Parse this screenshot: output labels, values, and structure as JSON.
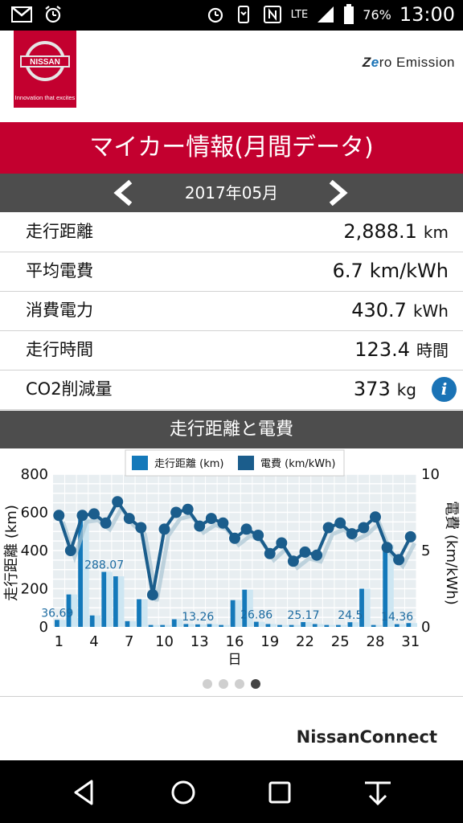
{
  "status_bar": {
    "time": "13:00",
    "battery_pct": "76%",
    "network": "LTE",
    "icons": [
      "gmail-icon",
      "alarm-icon",
      "alarm-clock-icon",
      "vibrate-icon",
      "nfc-icon",
      "signal-icon",
      "battery-icon"
    ]
  },
  "header": {
    "logo_brand": "NISSAN",
    "logo_tagline": "Innovation that excites",
    "ze_prefix": "Z",
    "ze_o": "e",
    "ze_rest": "ro Emission"
  },
  "title": "マイカー情報(月間データ)",
  "month_nav": {
    "label": "2017年05月"
  },
  "stats": [
    {
      "label": "走行距離",
      "value": "2,888.1",
      "unit": "km"
    },
    {
      "label": "平均電費",
      "value": "6.7",
      "unit": "km/kWh"
    },
    {
      "label": "消費電力",
      "value": "430.7",
      "unit": "kWh"
    },
    {
      "label": "走行時間",
      "value": "123.4",
      "unit": "時間"
    },
    {
      "label": "CO2削減量",
      "value": "373",
      "unit": "kg"
    }
  ],
  "info_icon_glyph": "i",
  "chart_title": "走行距離と電費",
  "chart_data": {
    "type": "bar+line",
    "legend": [
      "走行距離 (km)",
      "電費 (km/kWh)"
    ],
    "xlabel": "日",
    "ylabel_left": "走行距離 (km)",
    "ylabel_right": "電費 (km/kWh)",
    "ylim_left": [
      0,
      800
    ],
    "ylim_right": [
      0,
      10
    ],
    "yticks_left": [
      "0",
      "200",
      "400",
      "600",
      "800"
    ],
    "yticks_right": [
      "0",
      "5",
      "10"
    ],
    "xticks": [
      "1",
      "4",
      "7",
      "10",
      "13",
      "16",
      "19",
      "22",
      "25",
      "28",
      "31"
    ],
    "days": [
      1,
      2,
      3,
      4,
      5,
      6,
      7,
      8,
      9,
      10,
      11,
      12,
      13,
      14,
      15,
      16,
      17,
      18,
      19,
      20,
      21,
      22,
      23,
      24,
      25,
      26,
      27,
      28,
      29,
      30,
      31
    ],
    "distance_km": [
      36.69,
      170,
      570,
      60,
      288.07,
      265,
      30,
      145,
      10,
      10,
      40,
      15,
      13.26,
      15,
      10,
      140,
      195,
      26.86,
      15,
      10,
      10,
      25.17,
      15,
      10,
      10,
      24.5,
      200,
      10,
      430,
      14.36,
      20
    ],
    "efficiency_kmkwh": [
      7.3,
      5,
      7.3,
      7.4,
      6.8,
      8.2,
      7.1,
      6.5,
      2.1,
      6.4,
      7.5,
      7.7,
      6.6,
      7.1,
      6.8,
      5.8,
      6.4,
      6,
      4.8,
      5.5,
      4.3,
      4.9,
      4.7,
      6.5,
      6.8,
      6.1,
      6.5,
      7.2,
      5.2,
      4.4,
      5.9
    ],
    "data_labels": [
      {
        "day": 1,
        "text": "36.69"
      },
      {
        "day": 5,
        "text": "288.07"
      },
      {
        "day": 13,
        "text": "13.26"
      },
      {
        "day": 18,
        "text": "26.86"
      },
      {
        "day": 22,
        "text": "25.17"
      },
      {
        "day": 26,
        "text": "24.5"
      },
      {
        "day": 30,
        "text": "14.36"
      }
    ],
    "grid": true,
    "legend_position": "top",
    "colors": {
      "bar": "#1479ba",
      "bar_faded": "#cde6f2",
      "line": "#1b5d8c"
    }
  },
  "pager": {
    "count": 4,
    "active": 3
  },
  "footer": {
    "brand": "NissanConnect"
  },
  "nav_bar": [
    "back-icon",
    "home-icon",
    "recents-icon",
    "download-icon"
  ]
}
